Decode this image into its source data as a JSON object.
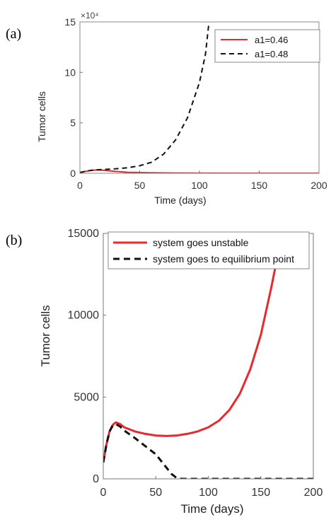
{
  "chart_data": [
    {
      "panel_label": "(a)",
      "type": "line",
      "ylabel": "Tumor cells",
      "xlabel": "Time (days)",
      "y_scale_label": "×10⁴",
      "xlim": [
        0,
        200
      ],
      "ylim": [
        0,
        15
      ],
      "xticks": [
        "0",
        "50",
        "100",
        "150",
        "200"
      ],
      "yticks": [
        "0",
        "5",
        "10",
        "15"
      ],
      "grid": false,
      "legend_position": "top-right",
      "series": [
        {
          "name": "a1=0.46",
          "color": "#e8282c",
          "style": "solid",
          "x": [
            0,
            5,
            10,
            15,
            20,
            30,
            40,
            60,
            80,
            100,
            150,
            200
          ],
          "y": [
            0.08,
            0.2,
            0.3,
            0.33,
            0.3,
            0.18,
            0.1,
            0.05,
            0.03,
            0.02,
            0.01,
            0.01
          ]
        },
        {
          "name": "a1=0.48",
          "color": "#111111",
          "style": "dashed",
          "x": [
            0,
            5,
            10,
            15,
            20,
            30,
            40,
            50,
            60,
            70,
            80,
            90,
            100,
            105,
            108
          ],
          "y": [
            0.08,
            0.2,
            0.3,
            0.35,
            0.38,
            0.45,
            0.55,
            0.75,
            1.1,
            1.9,
            3.3,
            5.5,
            9.0,
            11.8,
            15.0
          ]
        }
      ]
    },
    {
      "panel_label": "(b)",
      "type": "line",
      "ylabel": "Tumor cells",
      "xlabel": "Time (days)",
      "xlim": [
        0,
        200
      ],
      "ylim": [
        0,
        15000
      ],
      "xticks": [
        "0",
        "50",
        "100",
        "150",
        "200"
      ],
      "yticks": [
        "0",
        "5000",
        "10000",
        "15000"
      ],
      "grid": false,
      "legend_position": "top-left",
      "series": [
        {
          "name": "system goes unstable",
          "color": "#e8282c",
          "style": "solid",
          "x": [
            0,
            3,
            6,
            9,
            12,
            16,
            20,
            30,
            40,
            50,
            60,
            70,
            80,
            90,
            100,
            110,
            120,
            130,
            140,
            150,
            160,
            165,
            170
          ],
          "y": [
            1000,
            2100,
            2900,
            3300,
            3450,
            3350,
            3150,
            2900,
            2750,
            2650,
            2620,
            2650,
            2750,
            2900,
            3150,
            3550,
            4200,
            5200,
            6700,
            8800,
            11700,
            13300,
            15000
          ]
        },
        {
          "name": "system goes to equilibrium point",
          "color": "#111111",
          "style": "dashed",
          "x": [
            0,
            3,
            6,
            9,
            12,
            16,
            20,
            30,
            40,
            50,
            55,
            60,
            65,
            70,
            75,
            80,
            100,
            150,
            200
          ],
          "y": [
            1000,
            2100,
            2900,
            3250,
            3350,
            3200,
            2950,
            2500,
            2000,
            1500,
            1100,
            700,
            300,
            50,
            0,
            0,
            0,
            0,
            0
          ]
        }
      ]
    }
  ]
}
